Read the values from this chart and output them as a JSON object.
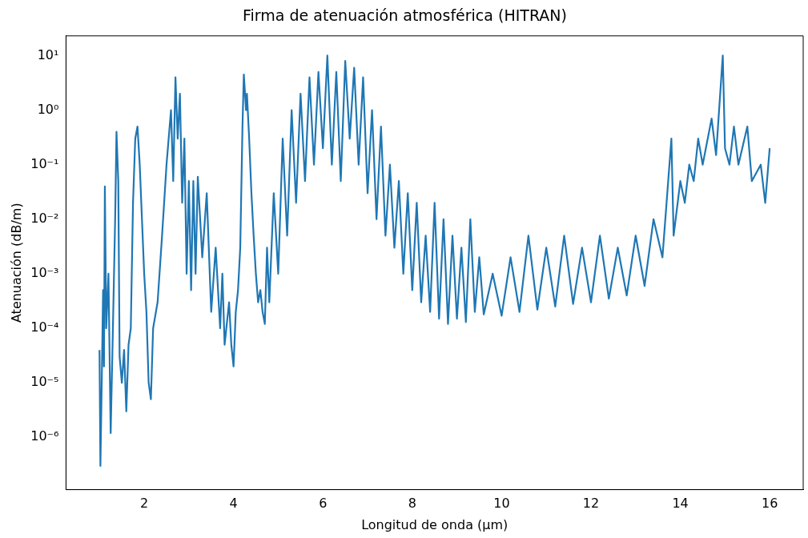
{
  "chart_data": {
    "type": "line",
    "title": "Firma de atenuación atmosférica (HITRAN)",
    "xlabel": "Longitud de onda (µm)",
    "ylabel": "Atenuación (dB/m)",
    "log": "y",
    "xlim": [
      0.25,
      16.75
    ],
    "xticks": [
      2,
      4,
      6,
      8,
      10,
      12,
      14,
      16
    ],
    "ylim": [
      1.1e-07,
      23
    ],
    "yticks": [
      {
        "value": 1e-06,
        "label": "10⁻⁶"
      },
      {
        "value": 1e-05,
        "label": "10⁻⁵"
      },
      {
        "value": 0.0001,
        "label": "10⁻⁴"
      },
      {
        "value": 0.001,
        "label": "10⁻³"
      },
      {
        "value": 0.01,
        "label": "10⁻²"
      },
      {
        "value": 0.1,
        "label": "10⁻¹"
      },
      {
        "value": 1,
        "label": "10⁰"
      },
      {
        "value": 10,
        "label": "10¹"
      }
    ],
    "x": [
      1.0,
      1.02,
      1.05,
      1.08,
      1.1,
      1.12,
      1.15,
      1.2,
      1.25,
      1.3,
      1.35,
      1.38,
      1.42,
      1.45,
      1.5,
      1.55,
      1.6,
      1.65,
      1.7,
      1.75,
      1.8,
      1.85,
      1.9,
      1.95,
      2.0,
      2.05,
      2.1,
      2.15,
      2.2,
      2.3,
      2.4,
      2.5,
      2.6,
      2.65,
      2.7,
      2.75,
      2.8,
      2.85,
      2.9,
      2.95,
      3.0,
      3.05,
      3.1,
      3.15,
      3.2,
      3.3,
      3.4,
      3.5,
      3.6,
      3.7,
      3.75,
      3.8,
      3.9,
      3.95,
      4.0,
      4.05,
      4.1,
      4.15,
      4.2,
      4.23,
      4.28,
      4.3,
      4.35,
      4.4,
      4.45,
      4.5,
      4.55,
      4.6,
      4.65,
      4.7,
      4.75,
      4.8,
      4.9,
      5.0,
      5.1,
      5.2,
      5.3,
      5.4,
      5.5,
      5.6,
      5.7,
      5.8,
      5.9,
      6.0,
      6.1,
      6.2,
      6.3,
      6.4,
      6.5,
      6.6,
      6.7,
      6.8,
      6.9,
      7.0,
      7.1,
      7.2,
      7.3,
      7.4,
      7.5,
      7.6,
      7.7,
      7.8,
      7.9,
      8.0,
      8.1,
      8.2,
      8.3,
      8.4,
      8.5,
      8.6,
      8.7,
      8.8,
      8.9,
      9.0,
      9.1,
      9.2,
      9.3,
      9.4,
      9.5,
      9.6,
      9.8,
      10.0,
      10.2,
      10.4,
      10.6,
      10.8,
      11.0,
      11.2,
      11.4,
      11.6,
      11.8,
      12.0,
      12.2,
      12.4,
      12.6,
      12.8,
      13.0,
      13.2,
      13.4,
      13.6,
      13.8,
      13.85,
      14.0,
      14.1,
      14.2,
      14.3,
      14.4,
      14.5,
      14.7,
      14.8,
      14.95,
      15.0,
      15.1,
      15.2,
      15.3,
      15.5,
      15.6,
      15.8,
      15.9,
      16.0
    ],
    "series": [
      {
        "color": "#1f77b4",
        "values": [
          4e-05,
          3e-07,
          1e-05,
          0.0005,
          2e-05,
          0.04,
          0.0001,
          0.001,
          1.2e-06,
          0.0001,
          0.01,
          0.4,
          0.05,
          3e-05,
          1e-05,
          4e-05,
          3e-06,
          5e-05,
          0.0001,
          0.02,
          0.3,
          0.5,
          0.1,
          0.01,
          0.001,
          0.0002,
          1e-05,
          5e-06,
          0.0001,
          0.0003,
          0.005,
          0.1,
          1,
          0.05,
          4,
          0.3,
          2,
          0.02,
          0.3,
          0.001,
          0.05,
          0.0005,
          0.05,
          0.001,
          0.06,
          0.002,
          0.03,
          0.0002,
          0.003,
          0.0001,
          0.001,
          5e-05,
          0.0003,
          5e-05,
          2e-05,
          0.0002,
          0.0005,
          0.003,
          0.5,
          4.5,
          1,
          2,
          0.3,
          0.03,
          0.005,
          0.001,
          0.0003,
          0.0005,
          0.0002,
          0.00012,
          0.003,
          0.0003,
          0.03,
          0.001,
          0.3,
          0.005,
          1,
          0.02,
          2,
          0.05,
          4,
          0.1,
          5,
          0.2,
          10,
          0.1,
          5,
          0.05,
          8,
          0.3,
          6,
          0.1,
          4,
          0.03,
          1,
          0.01,
          0.5,
          0.005,
          0.1,
          0.003,
          0.05,
          0.001,
          0.03,
          0.0005,
          0.02,
          0.0003,
          0.005,
          0.0002,
          0.02,
          0.00015,
          0.01,
          0.00012,
          0.005,
          0.00015,
          0.003,
          0.00013,
          0.01,
          0.0002,
          0.002,
          0.00018,
          0.001,
          0.00017,
          0.002,
          0.0002,
          0.005,
          0.00022,
          0.003,
          0.00025,
          0.005,
          0.00028,
          0.003,
          0.0003,
          0.005,
          0.00035,
          0.003,
          0.0004,
          0.005,
          0.0006,
          0.01,
          0.002,
          0.3,
          0.005,
          0.05,
          0.02,
          0.1,
          0.05,
          0.3,
          0.1,
          0.7,
          0.15,
          10,
          0.2,
          0.1,
          0.5,
          0.1,
          0.5,
          0.05,
          0.1,
          0.02,
          0.2
        ]
      }
    ]
  }
}
